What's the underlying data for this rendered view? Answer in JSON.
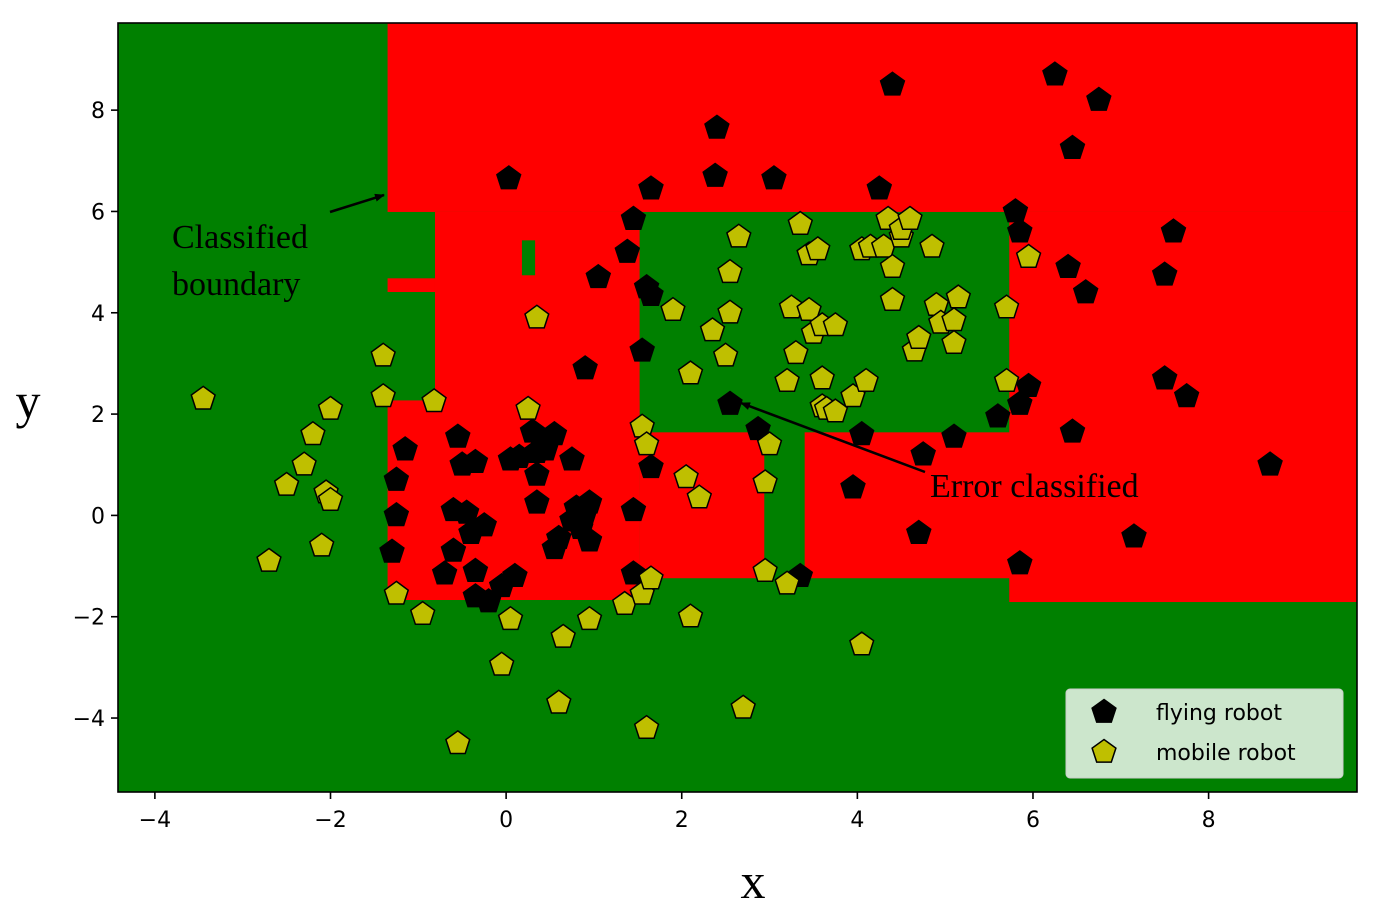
{
  "chart_data": {
    "type": "scatter",
    "x_label": "x",
    "y_label": "y",
    "xlim": [
      -4.42,
      9.69
    ],
    "ylim": [
      -5.46,
      9.72
    ],
    "xticks": [
      {
        "value": -4,
        "label": "−4"
      },
      {
        "value": -2,
        "label": "−2"
      },
      0,
      2,
      4,
      6,
      8
    ],
    "yticks": [
      {
        "value": -4,
        "label": "−4"
      },
      {
        "value": -2,
        "label": "−2"
      },
      0,
      2,
      4,
      6,
      8
    ],
    "background": "#008000",
    "regions": [
      {
        "color": "#ff0000",
        "x": [
          -1.35,
          9.69
        ],
        "y": [
          5.99,
          9.72
        ]
      },
      {
        "color": "#ff0000",
        "x": [
          -0.81,
          1.52
        ],
        "y": [
          -1.67,
          5.99
        ]
      },
      {
        "color": "#ff0000",
        "x": [
          -1.35,
          1.52
        ],
        "y": [
          -1.67,
          2.27
        ]
      },
      {
        "color": "#ff0000",
        "x": [
          -1.35,
          -0.81
        ],
        "y": [
          4.41,
          4.68
        ]
      },
      {
        "color": "#ff0000",
        "x": [
          1.52,
          2.94
        ],
        "y": [
          -1.24,
          1.64
        ]
      },
      {
        "color": "#ff0000",
        "x": [
          3.4,
          5.79
        ],
        "y": [
          -1.24,
          1.64
        ]
      },
      {
        "color": "#ff0000",
        "x": [
          5.73,
          9.69
        ],
        "y": [
          -1.71,
          5.99
        ]
      },
      {
        "color": "#008000",
        "x": [
          0.18,
          0.33
        ],
        "y": [
          4.74,
          5.43
        ]
      }
    ],
    "edgecolor": "#000000",
    "legend": "lower right",
    "annotations": [
      {
        "text": [
          "Classified",
          "boundary"
        ]
      },
      {
        "text": [
          "Error classified"
        ]
      }
    ],
    "series": [
      {
        "name": "flying robot",
        "color": "#000000",
        "x": [
          0.03,
          2.4,
          4.4,
          6.25,
          6.75,
          6.45,
          2.38,
          3.05,
          1.65,
          4.25,
          1.45,
          1.38,
          1.05,
          1.6,
          1.65,
          5.8,
          5.85,
          6.4,
          6.6,
          7.6,
          7.5,
          1.55,
          0.9,
          7.5,
          7.75,
          5.95,
          5.85,
          5.6,
          6.45,
          5.1,
          4.75,
          4.05,
          2.55,
          2.87,
          3.95,
          8.7,
          4.7,
          5.85,
          7.15,
          3.35,
          1.45,
          1.45,
          1.65,
          -1.15,
          -1.25,
          -1.25,
          -1.3,
          -0.55,
          -0.5,
          -0.35,
          -0.6,
          -0.45,
          -0.4,
          -0.25,
          -0.6,
          -0.7,
          -0.35,
          -0.35,
          -0.2,
          -0.05,
          0.1,
          0.05,
          0.15,
          0.3,
          0.4,
          0.55,
          0.35,
          0.45,
          0.35,
          0.35,
          0.75,
          0.8,
          0.75,
          0.9,
          0.95,
          0.85,
          0.95,
          0.6,
          0.55
        ],
        "y": [
          6.65,
          7.65,
          8.5,
          8.7,
          8.2,
          7.25,
          6.7,
          6.65,
          6.45,
          6.45,
          5.85,
          5.2,
          4.7,
          4.5,
          4.35,
          6.0,
          5.6,
          4.9,
          4.4,
          5.6,
          4.75,
          3.25,
          2.9,
          2.7,
          2.35,
          2.55,
          2.2,
          1.95,
          1.65,
          1.55,
          1.2,
          1.6,
          2.2,
          1.7,
          0.55,
          1.0,
          -0.35,
          -0.95,
          -0.42,
          -1.2,
          0.1,
          -1.15,
          0.95,
          1.3,
          0.7,
          0.0,
          -0.72,
          1.55,
          1.0,
          1.05,
          0.1,
          0.05,
          -0.35,
          -0.2,
          -0.7,
          -1.15,
          -1.1,
          -1.6,
          -1.7,
          -1.4,
          -1.2,
          1.1,
          1.15,
          1.65,
          1.5,
          1.6,
          1.25,
          1.3,
          0.8,
          0.25,
          1.1,
          0.15,
          -0.1,
          0.05,
          0.25,
          -0.25,
          -0.5,
          -0.45,
          -0.65
        ]
      },
      {
        "name": "mobile robot",
        "color": "#bfbf00",
        "x": [
          -3.45,
          -2.7,
          -2.5,
          -2.3,
          -2.2,
          -2.0,
          -2.05,
          -2.0,
          -2.1,
          -1.4,
          -1.4,
          -0.82,
          -1.25,
          -0.95,
          -0.55,
          -0.05,
          0.05,
          0.25,
          0.35,
          0.6,
          0.65,
          0.95,
          1.35,
          1.55,
          1.65,
          1.55,
          1.6,
          1.6,
          2.1,
          2.2,
          2.05,
          2.1,
          1.9,
          2.35,
          2.5,
          2.55,
          2.55,
          2.65,
          2.7,
          2.95,
          3.0,
          2.95,
          3.2,
          3.2,
          3.3,
          3.25,
          3.35,
          3.45,
          3.55,
          3.45,
          3.5,
          3.6,
          3.75,
          3.6,
          3.6,
          3.65,
          3.75,
          3.95,
          4.1,
          4.05,
          4.15,
          4.3,
          4.35,
          4.4,
          4.4,
          4.5,
          4.5,
          4.6,
          4.65,
          4.7,
          4.85,
          4.9,
          4.95,
          5.1,
          5.1,
          5.15,
          5.7,
          5.7,
          5.95,
          4.05
        ],
        "y": [
          2.3,
          -0.9,
          0.6,
          1.0,
          1.6,
          2.1,
          0.45,
          0.3,
          -0.6,
          3.15,
          2.35,
          2.25,
          -1.55,
          -1.95,
          -4.5,
          -2.95,
          -2.05,
          2.1,
          3.9,
          -3.7,
          -2.4,
          -2.05,
          -1.75,
          -1.55,
          -1.25,
          1.75,
          1.4,
          -4.2,
          -2.0,
          0.35,
          0.75,
          2.8,
          4.05,
          3.65,
          3.15,
          4.0,
          4.8,
          5.5,
          -3.8,
          0.65,
          1.4,
          -1.1,
          2.65,
          -1.35,
          3.2,
          4.1,
          5.75,
          5.15,
          5.25,
          4.05,
          3.6,
          3.75,
          3.75,
          2.7,
          2.15,
          2.1,
          2.05,
          2.35,
          2.65,
          5.25,
          5.3,
          5.3,
          5.85,
          4.9,
          4.25,
          5.5,
          5.65,
          5.85,
          3.25,
          3.5,
          5.3,
          4.15,
          3.8,
          3.85,
          3.4,
          4.3,
          4.1,
          2.65,
          5.1,
          -2.55
        ]
      }
    ]
  }
}
